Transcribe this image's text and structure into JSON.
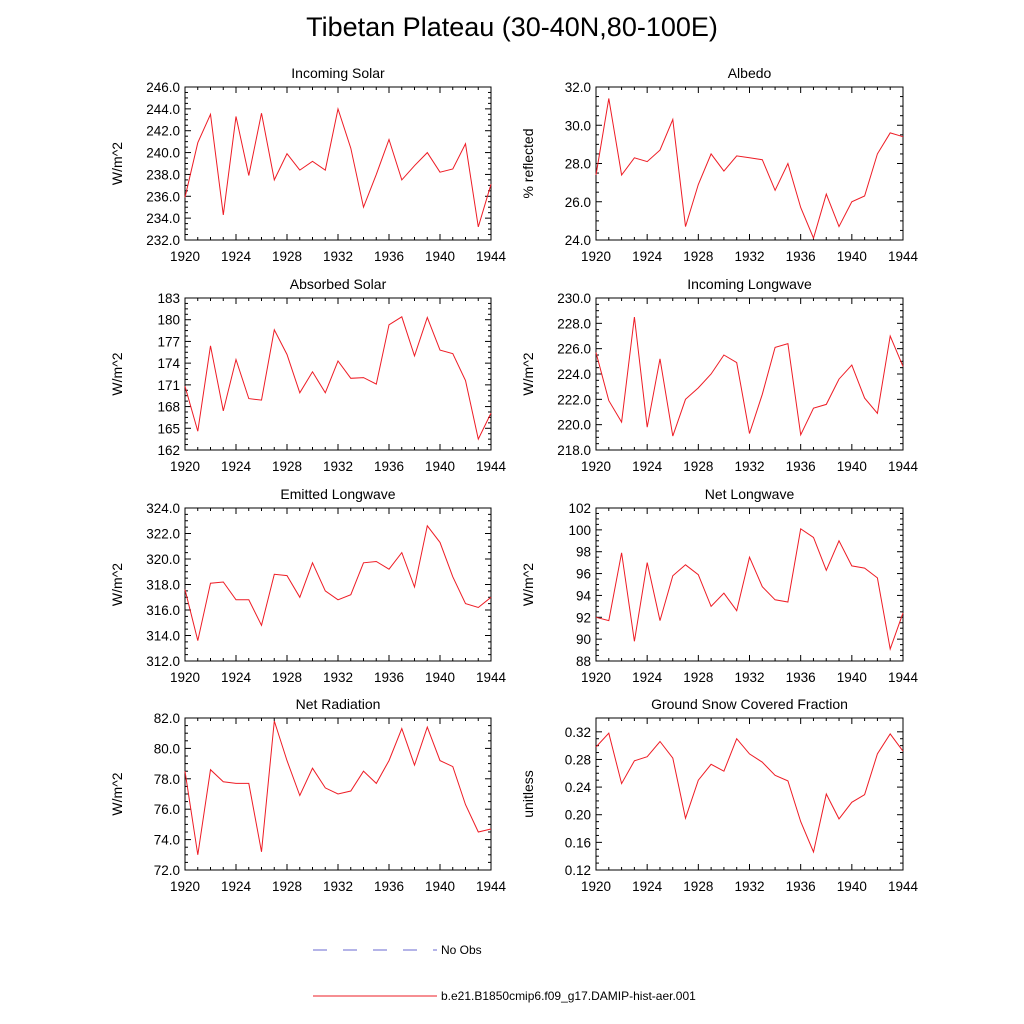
{
  "figure": {
    "title": "Tibetan Plateau (30-40N,80-100E)",
    "legend": {
      "obs_label": "No Obs",
      "obs_color": "#6a6ad0",
      "model_label": "b.e21.B1850cmip6.f09_g17.DAMIP-hist-aer.001",
      "model_color": "#ee1c25"
    }
  },
  "chart_data": [
    {
      "type": "line",
      "title": "Incoming Solar",
      "ylabel": "W/m^2",
      "xlabel": "",
      "xlim": [
        1920,
        1944
      ],
      "ylim": [
        232,
        246
      ],
      "xticks": [
        1920,
        1924,
        1928,
        1932,
        1936,
        1940,
        1944
      ],
      "yticks": [
        "232.0",
        "234.0",
        "236.0",
        "238.0",
        "240.0",
        "242.0",
        "244.0",
        "246.0"
      ],
      "x": [
        1920,
        1921,
        1922,
        1923,
        1924,
        1925,
        1926,
        1927,
        1928,
        1929,
        1930,
        1931,
        1932,
        1933,
        1934,
        1935,
        1936,
        1937,
        1938,
        1939,
        1940,
        1941,
        1942,
        1943,
        1944
      ],
      "series": [
        {
          "values": [
            235.9,
            240.9,
            243.5,
            234.3,
            243.3,
            237.9,
            243.6,
            237.5,
            239.9,
            238.4,
            239.2,
            238.4,
            244.0,
            240.4,
            235.0,
            238.0,
            241.2,
            237.5,
            238.8,
            240.0,
            238.2,
            238.5,
            240.8,
            233.2,
            237.1
          ]
        }
      ]
    },
    {
      "type": "line",
      "title": "Albedo",
      "ylabel": "% reflected",
      "xlabel": "",
      "xlim": [
        1920,
        1944
      ],
      "ylim": [
        24,
        32
      ],
      "xticks": [
        1920,
        1924,
        1928,
        1932,
        1936,
        1940,
        1944
      ],
      "yticks": [
        "24.0",
        "26.0",
        "28.0",
        "30.0",
        "32.0"
      ],
      "x": [
        1920,
        1921,
        1922,
        1923,
        1924,
        1925,
        1926,
        1927,
        1928,
        1929,
        1930,
        1931,
        1932,
        1933,
        1934,
        1935,
        1936,
        1937,
        1938,
        1939,
        1940,
        1941,
        1942,
        1943,
        1944
      ],
      "series": [
        {
          "values": [
            27.4,
            31.4,
            27.4,
            28.3,
            28.1,
            28.7,
            30.3,
            24.7,
            26.9,
            28.5,
            27.6,
            28.4,
            28.3,
            28.2,
            26.6,
            28.0,
            25.7,
            24.1,
            26.4,
            24.7,
            26.0,
            26.3,
            28.5,
            29.6,
            29.4
          ]
        }
      ]
    },
    {
      "type": "line",
      "title": "Absorbed Solar",
      "ylabel": "W/m^2",
      "xlabel": "",
      "xlim": [
        1920,
        1944
      ],
      "ylim": [
        162,
        183
      ],
      "xticks": [
        1920,
        1924,
        1928,
        1932,
        1936,
        1940,
        1944
      ],
      "yticks": [
        "162",
        "165",
        "168",
        "171",
        "174",
        "177",
        "180",
        "183"
      ],
      "x": [
        1920,
        1921,
        1922,
        1923,
        1924,
        1925,
        1926,
        1927,
        1928,
        1929,
        1930,
        1931,
        1932,
        1933,
        1934,
        1935,
        1936,
        1937,
        1938,
        1939,
        1940,
        1941,
        1942,
        1943,
        1944
      ],
      "series": [
        {
          "values": [
            170.8,
            164.6,
            176.4,
            167.4,
            174.5,
            169.1,
            168.9,
            178.6,
            175.2,
            169.9,
            172.8,
            169.9,
            174.3,
            171.9,
            172.0,
            171.1,
            179.3,
            180.4,
            175.0,
            180.3,
            175.8,
            175.3,
            171.6,
            163.5,
            167.1
          ]
        }
      ]
    },
    {
      "type": "line",
      "title": "Incoming Longwave",
      "ylabel": "W/m^2",
      "xlabel": "",
      "xlim": [
        1920,
        1944
      ],
      "ylim": [
        218,
        230
      ],
      "xticks": [
        1920,
        1924,
        1928,
        1932,
        1936,
        1940,
        1944
      ],
      "yticks": [
        "218.0",
        "220.0",
        "222.0",
        "224.0",
        "226.0",
        "228.0",
        "230.0"
      ],
      "x": [
        1920,
        1921,
        1922,
        1923,
        1924,
        1925,
        1926,
        1927,
        1928,
        1929,
        1930,
        1931,
        1932,
        1933,
        1934,
        1935,
        1936,
        1937,
        1938,
        1939,
        1940,
        1941,
        1942,
        1943,
        1944
      ],
      "series": [
        {
          "values": [
            225.7,
            221.9,
            220.2,
            228.5,
            219.8,
            225.2,
            219.1,
            222.0,
            222.9,
            224.0,
            225.5,
            224.9,
            219.3,
            222.4,
            226.1,
            226.4,
            219.2,
            221.3,
            221.6,
            223.6,
            224.7,
            222.1,
            220.9,
            227.0,
            224.6
          ]
        }
      ]
    },
    {
      "type": "line",
      "title": "Emitted Longwave",
      "ylabel": "W/m^2",
      "xlabel": "",
      "xlim": [
        1920,
        1944
      ],
      "ylim": [
        312,
        324
      ],
      "xticks": [
        1920,
        1924,
        1928,
        1932,
        1936,
        1940,
        1944
      ],
      "yticks": [
        "312.0",
        "314.0",
        "316.0",
        "318.0",
        "320.0",
        "322.0",
        "324.0"
      ],
      "x": [
        1920,
        1921,
        1922,
        1923,
        1924,
        1925,
        1926,
        1927,
        1928,
        1929,
        1930,
        1931,
        1932,
        1933,
        1934,
        1935,
        1936,
        1937,
        1938,
        1939,
        1940,
        1941,
        1942,
        1943,
        1944
      ],
      "series": [
        {
          "values": [
            317.6,
            313.6,
            318.1,
            318.2,
            316.8,
            316.8,
            314.8,
            318.8,
            318.7,
            317.0,
            319.7,
            317.5,
            316.8,
            317.2,
            319.7,
            319.8,
            319.2,
            320.5,
            317.8,
            322.6,
            321.3,
            318.6,
            316.5,
            316.2,
            317.0
          ]
        }
      ]
    },
    {
      "type": "line",
      "title": "Net Longwave",
      "ylabel": "W/m^2",
      "xlabel": "",
      "xlim": [
        1920,
        1944
      ],
      "ylim": [
        88,
        102
      ],
      "xticks": [
        1920,
        1924,
        1928,
        1932,
        1936,
        1940,
        1944
      ],
      "yticks": [
        "88",
        "90",
        "92",
        "94",
        "96",
        "98",
        "100",
        "102"
      ],
      "x": [
        1920,
        1921,
        1922,
        1923,
        1924,
        1925,
        1926,
        1927,
        1928,
        1929,
        1930,
        1931,
        1932,
        1933,
        1934,
        1935,
        1936,
        1937,
        1938,
        1939,
        1940,
        1941,
        1942,
        1943,
        1944
      ],
      "series": [
        {
          "values": [
            92.0,
            91.7,
            97.9,
            89.8,
            97.0,
            91.7,
            95.8,
            96.8,
            95.9,
            93.0,
            94.2,
            92.6,
            97.5,
            94.8,
            93.6,
            93.4,
            100.1,
            99.3,
            96.3,
            99.0,
            96.7,
            96.5,
            95.6,
            89.1,
            92.4
          ]
        }
      ]
    },
    {
      "type": "line",
      "title": "Net Radiation",
      "ylabel": "W/m^2",
      "xlabel": "",
      "xlim": [
        1920,
        1944
      ],
      "ylim": [
        72,
        82
      ],
      "xticks": [
        1920,
        1924,
        1928,
        1932,
        1936,
        1940,
        1944
      ],
      "yticks": [
        "72.0",
        "74.0",
        "76.0",
        "78.0",
        "80.0",
        "82.0"
      ],
      "x": [
        1920,
        1921,
        1922,
        1923,
        1924,
        1925,
        1926,
        1927,
        1928,
        1929,
        1930,
        1931,
        1932,
        1933,
        1934,
        1935,
        1936,
        1937,
        1938,
        1939,
        1940,
        1941,
        1942,
        1943,
        1944
      ],
      "series": [
        {
          "values": [
            78.5,
            73.0,
            78.6,
            77.8,
            77.7,
            77.7,
            73.2,
            81.8,
            79.2,
            76.9,
            78.7,
            77.4,
            77.0,
            77.2,
            78.5,
            77.7,
            79.2,
            81.3,
            78.9,
            81.4,
            79.2,
            78.8,
            76.3,
            74.5,
            74.7
          ]
        }
      ]
    },
    {
      "type": "line",
      "title": "Ground Snow Covered Fraction",
      "ylabel": "unitless",
      "xlabel": "",
      "xlim": [
        1920,
        1944
      ],
      "ylim": [
        0.12,
        0.34
      ],
      "xticks": [
        1920,
        1924,
        1928,
        1932,
        1936,
        1940,
        1944
      ],
      "yticks": [
        "0.12",
        "0.16",
        "0.20",
        "0.24",
        "0.28",
        "0.32"
      ],
      "x": [
        1920,
        1921,
        1922,
        1923,
        1924,
        1925,
        1926,
        1927,
        1928,
        1929,
        1930,
        1931,
        1932,
        1933,
        1934,
        1935,
        1936,
        1937,
        1938,
        1939,
        1940,
        1941,
        1942,
        1943,
        1944
      ],
      "series": [
        {
          "values": [
            0.298,
            0.318,
            0.245,
            0.278,
            0.284,
            0.306,
            0.282,
            0.195,
            0.25,
            0.273,
            0.263,
            0.31,
            0.288,
            0.276,
            0.257,
            0.249,
            0.19,
            0.146,
            0.23,
            0.194,
            0.218,
            0.229,
            0.288,
            0.317,
            0.292
          ]
        }
      ]
    }
  ]
}
